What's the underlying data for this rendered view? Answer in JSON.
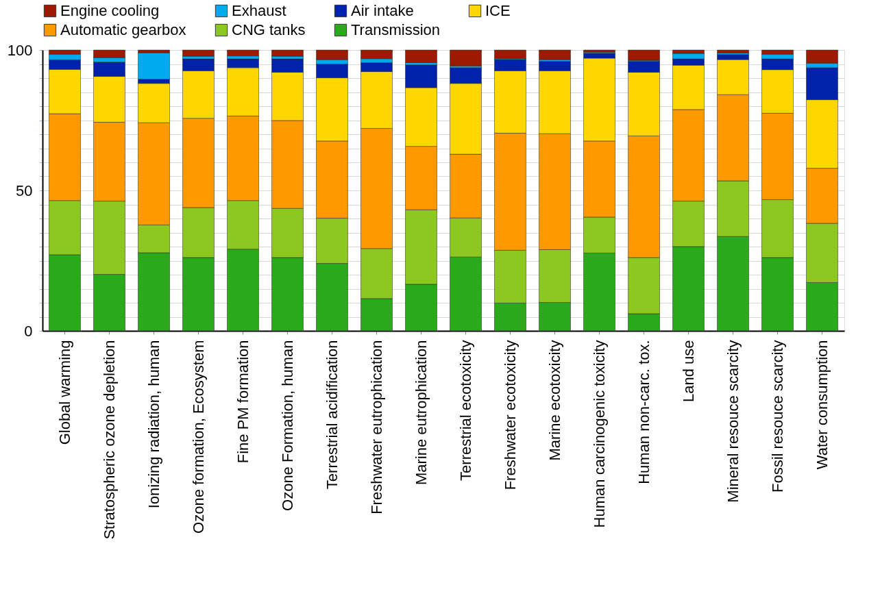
{
  "chart_data": {
    "type": "bar",
    "stacked": true,
    "categories": [
      "Global warming",
      "Stratospheric ozone depletion",
      "Ionizing radiation, human",
      "Ozone formation, Ecosystem",
      "Fine PM formation",
      "Ozone Formation, human",
      "Terrestrial acidification",
      "Freshwater eutrophication",
      "Marine eutrophication",
      "Terrestrial ecotoxicity",
      "Freshwater ecotoxicity",
      "Marine ecotoxicity",
      "Human carcinogenic toxicity",
      "Human non-carc. tox.",
      "Land use",
      "Mineral resouce scarcity",
      "Fossil resouce scarcity",
      "Water consumption"
    ],
    "series": [
      {
        "name": "Transmission",
        "color": "#2aaa1a",
        "values": [
          27.1,
          20.1,
          27.8,
          26.1,
          29.1,
          26.1,
          24.0,
          11.5,
          16.6,
          26.3,
          9.9,
          10.1,
          27.7,
          6.1,
          30.0,
          33.6,
          26.1,
          17.2
        ]
      },
      {
        "name": "CNG tanks",
        "color": "#8cc820",
        "values": [
          19.3,
          26.1,
          9.9,
          17.8,
          17.3,
          17.5,
          16.1,
          17.8,
          26.5,
          13.9,
          18.8,
          18.8,
          12.8,
          20.0,
          16.2,
          19.8,
          20.6,
          21.1
        ]
      },
      {
        "name": "Automatic gearbox",
        "color": "#ff9900",
        "values": [
          30.9,
          28.1,
          36.4,
          31.8,
          30.1,
          31.3,
          27.5,
          42.8,
          22.6,
          22.7,
          41.7,
          41.3,
          27.1,
          43.3,
          32.6,
          30.7,
          30.8,
          19.6
        ]
      },
      {
        "name": "ICE",
        "color": "#ffd700",
        "values": [
          15.8,
          16.3,
          14.0,
          16.9,
          17.2,
          17.2,
          22.5,
          20.2,
          20.9,
          25.2,
          22.2,
          22.4,
          29.5,
          22.7,
          15.8,
          12.5,
          15.5,
          24.4
        ]
      },
      {
        "name": "Air intake",
        "color": "#0022aa",
        "values": [
          3.4,
          5.1,
          1.5,
          4.2,
          3.1,
          4.7,
          4.9,
          3.2,
          8.1,
          5.6,
          4.0,
          3.4,
          1.7,
          3.9,
          2.2,
          1.8,
          3.8,
          11.4
        ]
      },
      {
        "name": "Exhaust",
        "color": "#00aaee",
        "values": [
          2.0,
          1.6,
          9.4,
          1.0,
          1.1,
          1.0,
          1.6,
          1.4,
          0.8,
          0.6,
          0.3,
          0.6,
          0.4,
          0.3,
          2.0,
          0.5,
          1.7,
          1.6
        ]
      },
      {
        "name": "Engine cooling",
        "color": "#9b1a00",
        "values": [
          1.5,
          2.7,
          1.0,
          2.2,
          2.1,
          2.2,
          3.4,
          3.1,
          4.5,
          5.7,
          3.1,
          3.4,
          0.8,
          3.7,
          1.2,
          1.1,
          1.5,
          4.7
        ]
      }
    ],
    "ylim": [
      0,
      100
    ],
    "yticks": [
      0,
      {
        "value": 5,
        "label": null
      },
      {
        "value": 10,
        "label": null
      },
      {
        "value": 15,
        "label": null
      },
      {
        "value": 20,
        "label": null
      },
      {
        "value": 25,
        "label": null
      },
      {
        "value": 30,
        "label": null
      },
      {
        "value": 35,
        "label": null
      },
      {
        "value": 40,
        "label": null
      },
      {
        "value": 45,
        "label": null
      },
      50,
      {
        "value": 55,
        "label": null
      },
      {
        "value": 60,
        "label": null
      },
      {
        "value": 65,
        "label": null
      },
      {
        "value": 70,
        "label": null
      },
      {
        "value": 75,
        "label": null
      },
      {
        "value": 80,
        "label": null
      },
      {
        "value": 85,
        "label": null
      },
      {
        "value": 90,
        "label": null
      },
      {
        "value": 95,
        "label": null
      },
      100
    ],
    "grid": "y",
    "legend": "top"
  }
}
